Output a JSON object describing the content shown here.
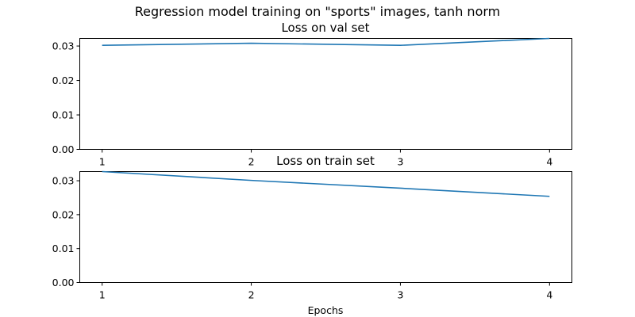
{
  "figure": {
    "suptitle": "Regression model training on \"sports\" images, tanh norm"
  },
  "colors": {
    "series": "#1f77b4"
  },
  "chart_data": [
    {
      "type": "line",
      "title": "Loss on val set",
      "xlabel": "",
      "ylabel": "",
      "x": [
        1,
        2,
        3,
        4
      ],
      "xticks": [
        "1",
        "2",
        "3",
        "4"
      ],
      "xlim": [
        0.85,
        4.15
      ],
      "ylim": [
        0,
        0.0322
      ],
      "yticks": [
        "0.00",
        "0.01",
        "0.02",
        "0.03"
      ],
      "grid": false,
      "series": [
        {
          "values": [
            0.0302,
            0.0308,
            0.0302,
            0.0322
          ]
        }
      ]
    },
    {
      "type": "line",
      "title": "Loss on train set",
      "xlabel": "Epochs",
      "ylabel": "",
      "x": [
        1,
        2,
        3,
        4
      ],
      "xticks": [
        "1",
        "2",
        "3",
        "4"
      ],
      "xlim": [
        0.85,
        4.15
      ],
      "ylim": [
        0,
        0.0327
      ],
      "yticks": [
        "0.00",
        "0.01",
        "0.02",
        "0.03"
      ],
      "grid": false,
      "series": [
        {
          "values": [
            0.0327,
            0.0301,
            0.0278,
            0.0254
          ]
        }
      ]
    }
  ]
}
